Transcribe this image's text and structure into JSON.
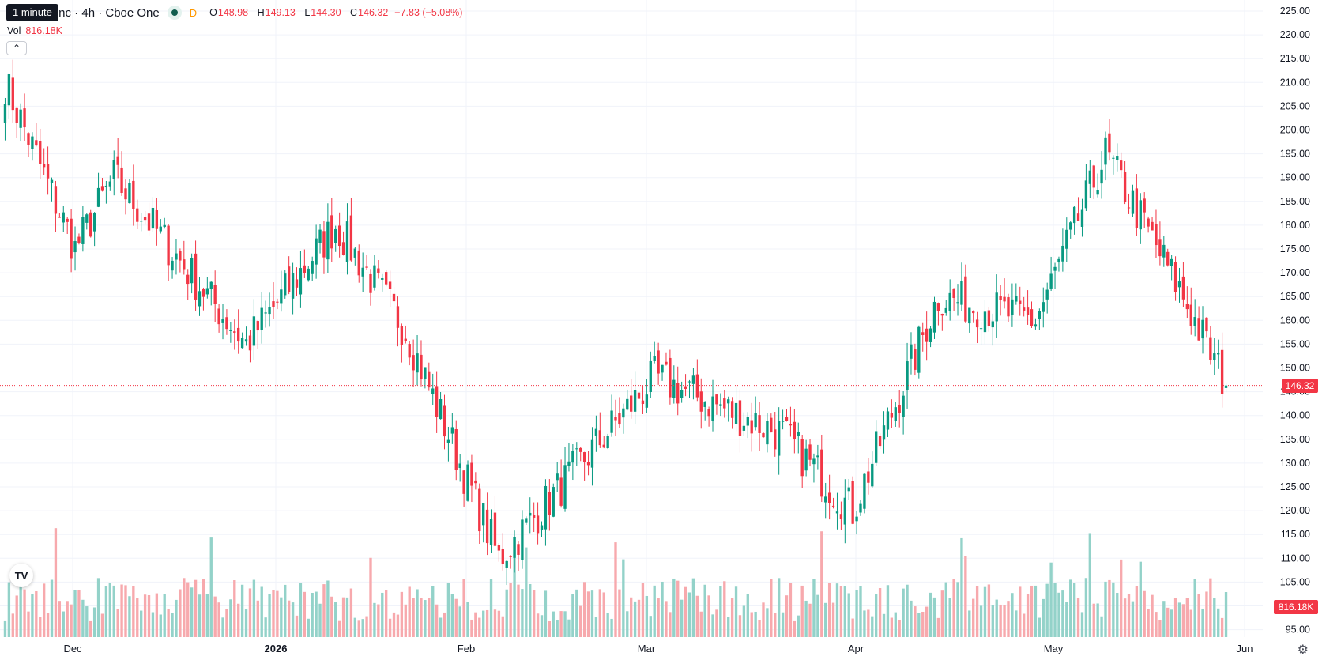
{
  "header": {
    "tooltip": "1 minute",
    "symbol_title": "gy Inc · 4h · Cboe One",
    "interval_badge": "D",
    "ohlc": [
      {
        "key": "O",
        "value": "148.98"
      },
      {
        "key": "H",
        "value": "149.13"
      },
      {
        "key": "L",
        "value": "144.30"
      },
      {
        "key": "C",
        "value": "146.32"
      }
    ],
    "change": "−7.83 (−5.08%)",
    "volume_label": "Vol",
    "volume_value": "816.18K",
    "collapse_icon": "chevron-up-icon"
  },
  "badges": {
    "last_price": "146.32",
    "last_volume": "816.18K"
  },
  "colors": {
    "up": "#089981",
    "down": "#f23645",
    "up_volume": "#93d2c9",
    "down_volume": "#f7a9ad",
    "grid": "#f0f3fa",
    "axis_text": "#131722"
  },
  "icons": {
    "logo": "tradingview-logo-icon",
    "settings": "gear-icon"
  },
  "chart_data": {
    "type": "candlestick",
    "title": "gy Inc · 4h · Cboe One",
    "ylim": [
      92,
      227
    ],
    "y_ticks": [
      95,
      100,
      105,
      110,
      115,
      120,
      125,
      130,
      135,
      140,
      145,
      150,
      155,
      160,
      165,
      170,
      175,
      180,
      185,
      190,
      195,
      200,
      205,
      210,
      215,
      220,
      225
    ],
    "x_ticks": [
      "Dec",
      "2026",
      "Feb",
      "Mar",
      "Apr",
      "May",
      "Jun"
    ],
    "last_close": 146.32,
    "key_points": [
      {
        "period": "late Nov",
        "close": 210
      },
      {
        "period": "early Dec",
        "close": 175
      },
      {
        "period": "mid Dec",
        "close": 190
      },
      {
        "period": "early Jan",
        "close": 155
      },
      {
        "period": "mid Jan",
        "close": 180
      },
      {
        "period": "late Jan",
        "close": 158
      },
      {
        "period": "early Feb",
        "close": 110
      },
      {
        "period": "early Mar",
        "close": 148
      },
      {
        "period": "late Mar",
        "close": 136
      },
      {
        "period": "early Apr",
        "close": 120
      },
      {
        "period": "mid Apr",
        "close": 165
      },
      {
        "period": "late Apr",
        "close": 160
      },
      {
        "period": "mid May",
        "close": 195
      },
      {
        "period": "late May",
        "close": 165
      },
      {
        "period": "end May",
        "close": 146.32
      }
    ]
  }
}
